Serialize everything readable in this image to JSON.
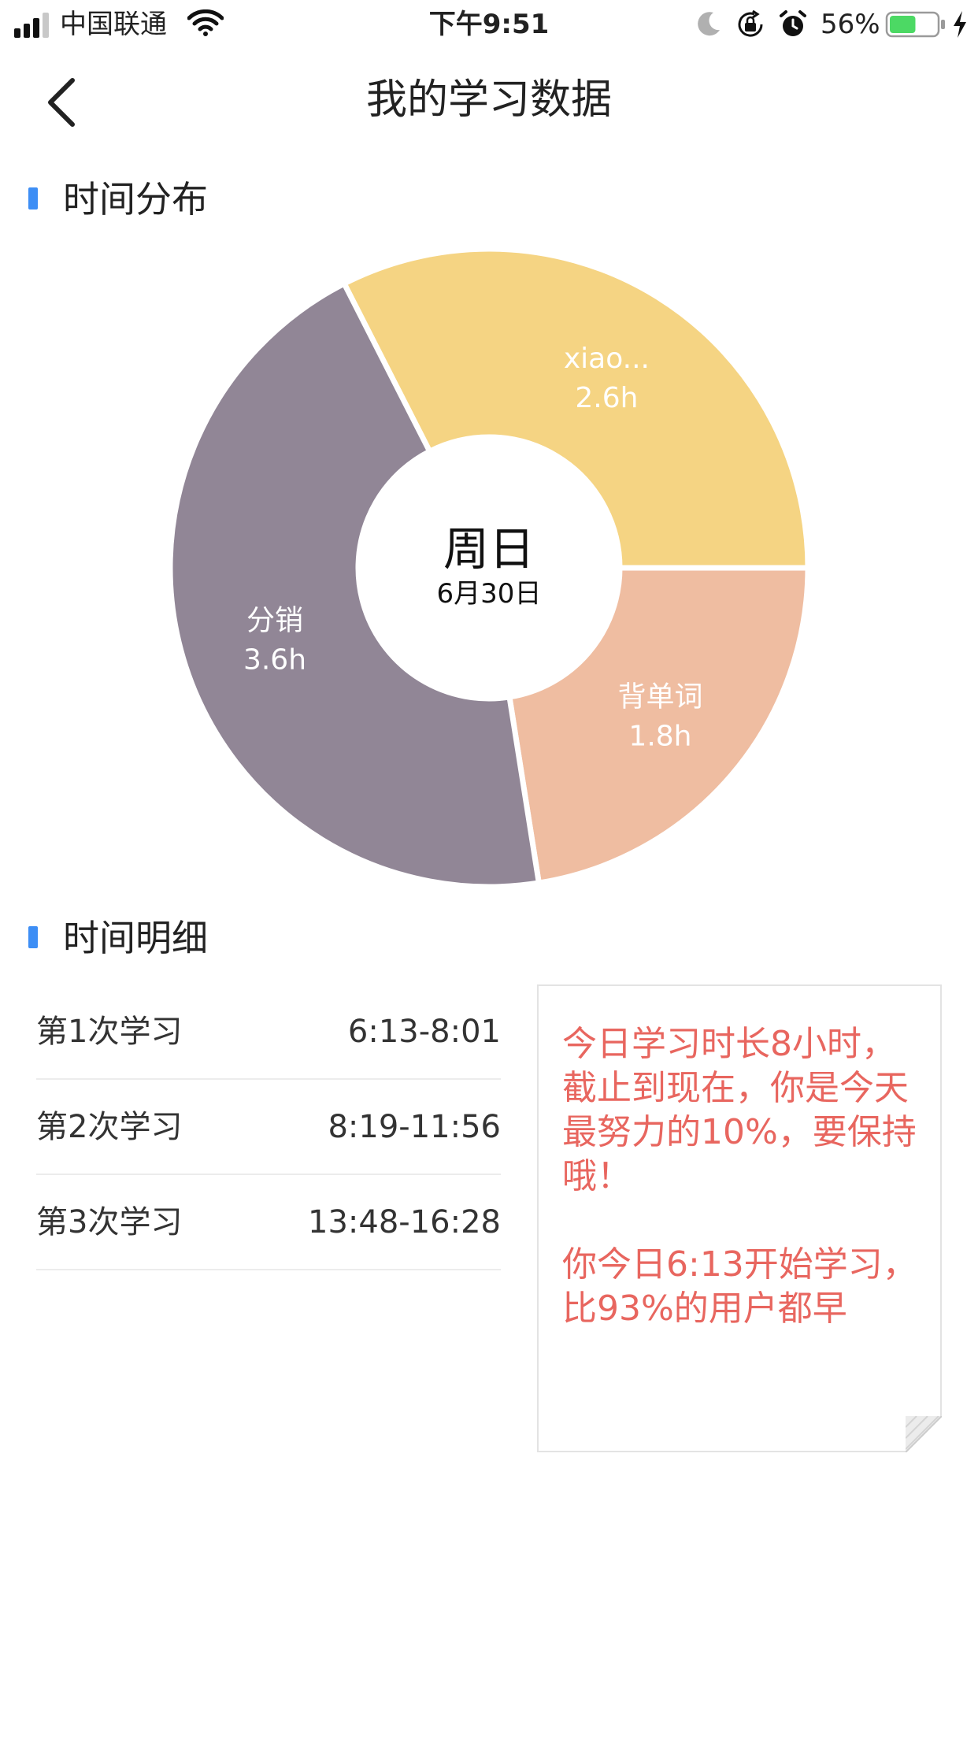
{
  "status_bar": {
    "carrier": "中国联通",
    "time": "下午9:51",
    "battery_percent": "56%",
    "battery_level": 0.56,
    "icons": [
      "signal-icon",
      "wifi-icon",
      "moon-icon",
      "orientation-lock-icon",
      "alarm-icon",
      "battery-icon",
      "charging-icon"
    ]
  },
  "header": {
    "title": "我的学习数据",
    "back_icon": "chevron-left-icon"
  },
  "sections": {
    "distribution_title": "时间分布",
    "detail_title": "时间明细"
  },
  "chart_data": {
    "type": "pie",
    "center_title": "周日",
    "center_subtitle": "6月30日",
    "slices": [
      {
        "label": "xiao...",
        "value": 2.6,
        "value_label": "2.6h",
        "color": "#f5d483"
      },
      {
        "label": "背单词",
        "value": 1.8,
        "value_label": "1.8h",
        "color": "#efbda1"
      },
      {
        "label": "分销",
        "value": 3.6,
        "value_label": "3.6h",
        "color": "#918696"
      }
    ]
  },
  "details": [
    {
      "label": "第1次学习",
      "time": "6:13-8:01"
    },
    {
      "label": "第2次学习",
      "time": "8:19-11:56"
    },
    {
      "label": "第3次学习",
      "time": "13:48-16:28"
    }
  ],
  "note": {
    "paragraph1": "今日学习时长8小时，截止到现在，你是今天最努力的10%，要保持哦！",
    "paragraph2": "你今日6:13开始学习，比93%的用户都早"
  },
  "colors": {
    "accent": "#3d8ef5",
    "note_text": "#e8665f"
  }
}
